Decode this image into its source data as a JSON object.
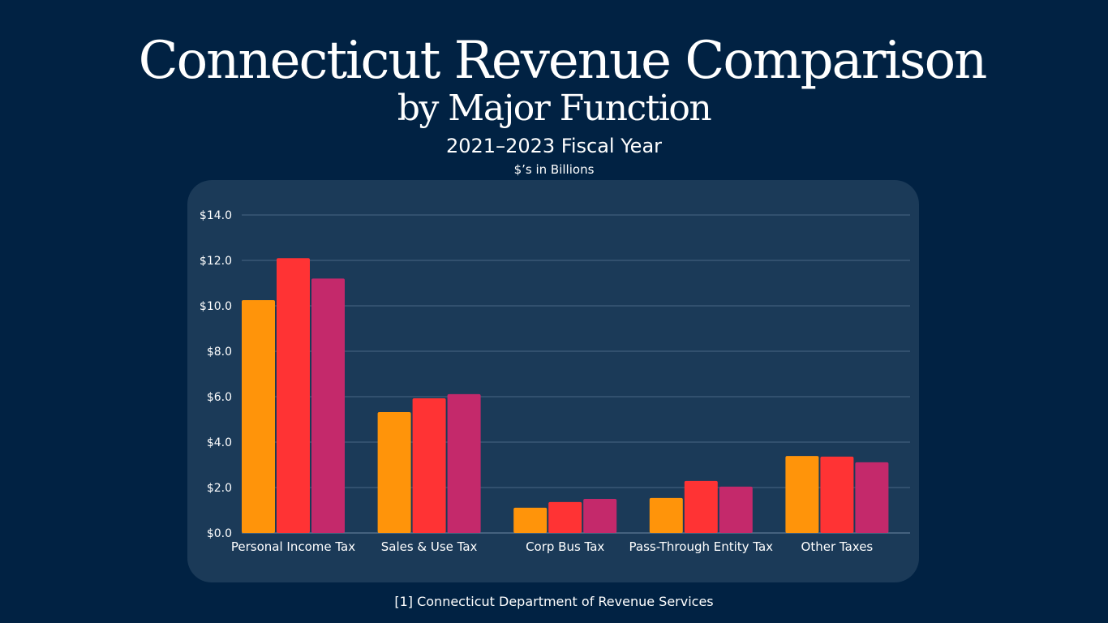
{
  "title": "Connecticut Revenue Comparison",
  "subtitle": "by Major Function",
  "period": "2021–2023 Fiscal Year",
  "units": "$’s in Billions",
  "source": "[1] Connecticut Department of Revenue Services",
  "chart_data": {
    "type": "bar",
    "title": "Connecticut Revenue Comparison by Major Function",
    "categories": [
      "Personal Income Tax",
      "Sales & Use Tax",
      "Corp Bus Tax",
      "Pass-Through Entity Tax",
      "Other Taxes"
    ],
    "series": [
      {
        "values": [
          10.25,
          5.32,
          1.11,
          1.54,
          3.39
        ],
        "color": "#ff940a"
      },
      {
        "values": [
          12.1,
          5.93,
          1.36,
          2.29,
          3.36
        ],
        "color": "#ff3334"
      },
      {
        "values": [
          11.2,
          6.11,
          1.5,
          2.04,
          3.11
        ],
        "color": "#c4296b"
      }
    ],
    "ylim": [
      0,
      14
    ],
    "yticks": [
      "$0.0",
      "$2.0",
      "$4.0",
      "$6.0",
      "$8.0",
      "$10.0",
      "$12.0",
      "$14.0"
    ],
    "grid": true,
    "legend": "none"
  }
}
